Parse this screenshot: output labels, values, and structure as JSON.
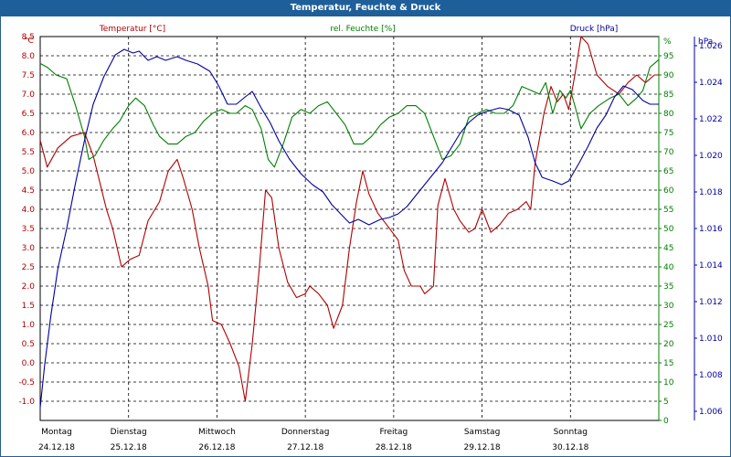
{
  "title": "Temperatur, Feuchte & Druck",
  "colors": {
    "title_bar": "#1f5f99",
    "temperature": "#b00000",
    "humidity": "#008000",
    "pressure": "#0000a0",
    "grid": "#000000"
  },
  "chart_data": {
    "type": "line",
    "title": "Temperatur, Feuchte & Druck",
    "grid": true,
    "axes": {
      "temperature": {
        "label": "Temperatur [°C]",
        "unit": "°C",
        "ylim": [
          -1.5,
          8.5
        ],
        "ticks": [
          -1.0,
          -0.5,
          0.0,
          0.5,
          1.0,
          1.5,
          2.0,
          2.5,
          3.0,
          3.5,
          4.0,
          4.5,
          5.0,
          5.5,
          6.0,
          6.5,
          7.0,
          7.5,
          8.0,
          8.5
        ]
      },
      "humidity": {
        "label": "rel. Feuchte [%]",
        "unit": "%",
        "ylim": [
          0,
          100
        ],
        "ticks": [
          0,
          5,
          10,
          15,
          20,
          25,
          30,
          35,
          40,
          45,
          50,
          55,
          60,
          65,
          70,
          75,
          80,
          85,
          90,
          95
        ]
      },
      "pressure": {
        "label": "Druck [hPa]",
        "unit": "hPa",
        "ylim": [
          1.0055,
          1.0265
        ],
        "ticks": [
          "1.006",
          "1.008",
          "1.010",
          "1.012",
          "1.014",
          "1.016",
          "1.018",
          "1.020",
          "1.022",
          "1.024",
          "1.026"
        ],
        "tick_values": [
          1.006,
          1.008,
          1.01,
          1.012,
          1.014,
          1.016,
          1.018,
          1.02,
          1.022,
          1.024,
          1.026
        ]
      }
    },
    "x_range": [
      0,
      7
    ],
    "x_ticks": [
      {
        "day": "Montag",
        "date": "24.12.18"
      },
      {
        "day": "Dienstag",
        "date": "25.12.18"
      },
      {
        "day": "Mittwoch",
        "date": "26.12.18"
      },
      {
        "day": "Donnerstag",
        "date": "27.12.18"
      },
      {
        "day": "Freitag",
        "date": "28.12.18"
      },
      {
        "day": "Samstag",
        "date": "29.12.18"
      },
      {
        "day": "Sonntag",
        "date": "30.12.18"
      }
    ],
    "series": [
      {
        "name": "Temperatur [°C]",
        "axis": "temperature",
        "points": [
          [
            0.0,
            5.8
          ],
          [
            0.08,
            5.1
          ],
          [
            0.2,
            5.6
          ],
          [
            0.35,
            5.9
          ],
          [
            0.5,
            6.0
          ],
          [
            0.6,
            5.4
          ],
          [
            0.75,
            4.0
          ],
          [
            0.82,
            3.5
          ],
          [
            0.92,
            2.5
          ],
          [
            1.02,
            2.7
          ],
          [
            1.12,
            2.8
          ],
          [
            1.22,
            3.7
          ],
          [
            1.35,
            4.2
          ],
          [
            1.45,
            5.0
          ],
          [
            1.55,
            5.3
          ],
          [
            1.62,
            4.8
          ],
          [
            1.72,
            4.0
          ],
          [
            1.8,
            3.0
          ],
          [
            1.9,
            2.0
          ],
          [
            1.95,
            1.1
          ],
          [
            2.05,
            1.0
          ],
          [
            2.15,
            0.5
          ],
          [
            2.25,
            -0.1
          ],
          [
            2.32,
            -1.0
          ],
          [
            2.4,
            0.5
          ],
          [
            2.48,
            2.5
          ],
          [
            2.55,
            4.5
          ],
          [
            2.62,
            4.3
          ],
          [
            2.7,
            3.0
          ],
          [
            2.8,
            2.1
          ],
          [
            2.9,
            1.7
          ],
          [
            3.0,
            1.8
          ],
          [
            3.05,
            2.0
          ],
          [
            3.15,
            1.8
          ],
          [
            3.25,
            1.5
          ],
          [
            3.32,
            0.9
          ],
          [
            3.42,
            1.5
          ],
          [
            3.5,
            3.0
          ],
          [
            3.58,
            4.2
          ],
          [
            3.65,
            5.0
          ],
          [
            3.72,
            4.4
          ],
          [
            3.82,
            3.9
          ],
          [
            3.92,
            3.6
          ],
          [
            4.05,
            3.2
          ],
          [
            4.12,
            2.4
          ],
          [
            4.2,
            2.0
          ],
          [
            4.3,
            2.0
          ],
          [
            4.35,
            1.8
          ],
          [
            4.45,
            2.0
          ],
          [
            4.5,
            4.1
          ],
          [
            4.58,
            4.8
          ],
          [
            4.68,
            4.0
          ],
          [
            4.75,
            3.7
          ],
          [
            4.85,
            3.4
          ],
          [
            4.92,
            3.5
          ],
          [
            5.0,
            4.0
          ],
          [
            5.1,
            3.4
          ],
          [
            5.2,
            3.6
          ],
          [
            5.3,
            3.9
          ],
          [
            5.4,
            4.0
          ],
          [
            5.5,
            4.2
          ],
          [
            5.55,
            4.0
          ],
          [
            5.6,
            5.2
          ],
          [
            5.7,
            6.5
          ],
          [
            5.78,
            7.2
          ],
          [
            5.85,
            6.8
          ],
          [
            5.92,
            7.0
          ],
          [
            5.98,
            6.6
          ],
          [
            6.05,
            7.5
          ],
          [
            6.12,
            8.5
          ],
          [
            6.2,
            8.3
          ],
          [
            6.3,
            7.5
          ],
          [
            6.42,
            7.2
          ],
          [
            6.55,
            7.0
          ],
          [
            6.65,
            7.3
          ],
          [
            6.75,
            7.5
          ],
          [
            6.85,
            7.3
          ],
          [
            6.95,
            7.5
          ],
          [
            7.0,
            7.5
          ]
        ]
      },
      {
        "name": "rel. Feuchte [%]",
        "axis": "humidity",
        "points": [
          [
            0.0,
            93
          ],
          [
            0.08,
            92
          ],
          [
            0.18,
            90
          ],
          [
            0.3,
            89
          ],
          [
            0.4,
            82
          ],
          [
            0.5,
            74
          ],
          [
            0.55,
            68
          ],
          [
            0.62,
            69
          ],
          [
            0.72,
            73
          ],
          [
            0.82,
            76
          ],
          [
            0.9,
            78
          ],
          [
            1.0,
            82
          ],
          [
            1.08,
            84
          ],
          [
            1.18,
            82
          ],
          [
            1.28,
            77
          ],
          [
            1.35,
            74
          ],
          [
            1.45,
            72
          ],
          [
            1.55,
            72
          ],
          [
            1.65,
            74
          ],
          [
            1.75,
            75
          ],
          [
            1.85,
            78
          ],
          [
            1.95,
            80
          ],
          [
            2.05,
            81
          ],
          [
            2.15,
            80
          ],
          [
            2.22,
            80
          ],
          [
            2.32,
            82
          ],
          [
            2.4,
            81
          ],
          [
            2.5,
            76
          ],
          [
            2.58,
            68
          ],
          [
            2.65,
            66
          ],
          [
            2.75,
            72
          ],
          [
            2.85,
            79
          ],
          [
            2.95,
            81
          ],
          [
            3.05,
            80
          ],
          [
            3.15,
            82
          ],
          [
            3.25,
            83
          ],
          [
            3.35,
            80
          ],
          [
            3.45,
            77
          ],
          [
            3.55,
            72
          ],
          [
            3.65,
            72
          ],
          [
            3.75,
            74
          ],
          [
            3.85,
            77
          ],
          [
            3.95,
            79
          ],
          [
            4.05,
            80
          ],
          [
            4.15,
            82
          ],
          [
            4.25,
            82
          ],
          [
            4.35,
            80
          ],
          [
            4.45,
            74
          ],
          [
            4.55,
            68
          ],
          [
            4.65,
            69
          ],
          [
            4.75,
            72
          ],
          [
            4.85,
            79
          ],
          [
            4.95,
            80
          ],
          [
            5.05,
            81
          ],
          [
            5.15,
            80
          ],
          [
            5.25,
            80
          ],
          [
            5.35,
            82
          ],
          [
            5.45,
            87
          ],
          [
            5.55,
            86
          ],
          [
            5.65,
            85
          ],
          [
            5.72,
            88
          ],
          [
            5.8,
            80
          ],
          [
            5.88,
            86
          ],
          [
            5.95,
            84
          ],
          [
            6.0,
            86
          ],
          [
            6.05,
            82
          ],
          [
            6.12,
            76
          ],
          [
            6.22,
            80
          ],
          [
            6.32,
            82
          ],
          [
            6.45,
            84
          ],
          [
            6.55,
            85
          ],
          [
            6.65,
            82
          ],
          [
            6.75,
            84
          ],
          [
            6.82,
            86
          ],
          [
            6.9,
            92
          ],
          [
            6.95,
            93
          ],
          [
            7.0,
            94
          ]
        ]
      },
      {
        "name": "Druck [hPa]",
        "axis": "pressure",
        "points": [
          [
            0.0,
            1.0062
          ],
          [
            0.05,
            1.0085
          ],
          [
            0.12,
            1.0112
          ],
          [
            0.2,
            1.0138
          ],
          [
            0.3,
            1.016
          ],
          [
            0.4,
            1.0185
          ],
          [
            0.5,
            1.0208
          ],
          [
            0.6,
            1.0228
          ],
          [
            0.72,
            1.0243
          ],
          [
            0.85,
            1.0255
          ],
          [
            0.95,
            1.0258
          ],
          [
            1.05,
            1.0256
          ],
          [
            1.12,
            1.0257
          ],
          [
            1.22,
            1.0252
          ],
          [
            1.32,
            1.0254
          ],
          [
            1.42,
            1.0252
          ],
          [
            1.55,
            1.0254
          ],
          [
            1.65,
            1.0252
          ],
          [
            1.78,
            1.025
          ],
          [
            1.92,
            1.0246
          ],
          [
            2.02,
            1.0238
          ],
          [
            2.12,
            1.0228
          ],
          [
            2.22,
            1.0228
          ],
          [
            2.32,
            1.0232
          ],
          [
            2.4,
            1.0235
          ],
          [
            2.5,
            1.0226
          ],
          [
            2.6,
            1.0218
          ],
          [
            2.7,
            1.0208
          ],
          [
            2.82,
            1.0198
          ],
          [
            2.95,
            1.019
          ],
          [
            3.08,
            1.0184
          ],
          [
            3.2,
            1.018
          ],
          [
            3.3,
            1.0173
          ],
          [
            3.4,
            1.0168
          ],
          [
            3.5,
            1.0163
          ],
          [
            3.6,
            1.0165
          ],
          [
            3.72,
            1.0162
          ],
          [
            3.85,
            1.0165
          ],
          [
            3.95,
            1.0166
          ],
          [
            4.05,
            1.0168
          ],
          [
            4.15,
            1.0172
          ],
          [
            4.25,
            1.0178
          ],
          [
            4.35,
            1.0184
          ],
          [
            4.45,
            1.019
          ],
          [
            4.55,
            1.0196
          ],
          [
            4.65,
            1.0204
          ],
          [
            4.75,
            1.0212
          ],
          [
            4.85,
            1.0218
          ],
          [
            4.95,
            1.0222
          ],
          [
            5.05,
            1.0224
          ],
          [
            5.2,
            1.0226
          ],
          [
            5.3,
            1.0225
          ],
          [
            5.42,
            1.0222
          ],
          [
            5.52,
            1.021
          ],
          [
            5.6,
            1.0196
          ],
          [
            5.68,
            1.0188
          ],
          [
            5.8,
            1.0186
          ],
          [
            5.9,
            1.0184
          ],
          [
            5.98,
            1.0186
          ],
          [
            6.1,
            1.0196
          ],
          [
            6.2,
            1.0205
          ],
          [
            6.3,
            1.0215
          ],
          [
            6.4,
            1.0222
          ],
          [
            6.5,
            1.0232
          ],
          [
            6.6,
            1.0238
          ],
          [
            6.7,
            1.0236
          ],
          [
            6.82,
            1.023
          ],
          [
            6.9,
            1.0228
          ],
          [
            7.0,
            1.0228
          ]
        ]
      }
    ]
  }
}
